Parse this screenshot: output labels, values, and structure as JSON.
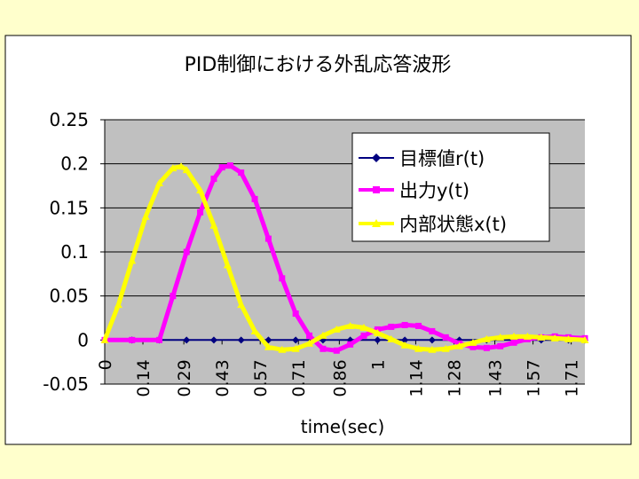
{
  "chart_data": {
    "type": "line",
    "title": "PID制御における外乱応答波形",
    "xlabel": "time(sec)",
    "ylabel": "",
    "ylim": [
      -0.05,
      0.25
    ],
    "yticks": [
      "0.25",
      "0.2",
      "0.15",
      "0.1",
      "0.05",
      "0",
      "-0.05"
    ],
    "ytick_values": [
      0.25,
      0.2,
      0.15,
      0.1,
      0.05,
      0,
      -0.05
    ],
    "xlim": [
      0,
      1.76
    ],
    "xticks": [
      "0",
      "0.14",
      "0.29",
      "0.43",
      "0.57",
      "0.71",
      "0.86",
      "1",
      "1.14",
      "1.28",
      "1.43",
      "1.57",
      "1.71"
    ],
    "xtick_values": [
      0,
      0.14,
      0.29,
      0.43,
      0.57,
      0.71,
      0.86,
      1.0,
      1.14,
      1.28,
      1.43,
      1.57,
      1.71
    ],
    "grid": true,
    "legend_position": "top-right",
    "colors": {
      "page_bg": "#ffffcc",
      "chart_bg": "#ffffff",
      "plot_bg": "#c0c0c0",
      "series_r": "#000080",
      "series_y": "#ff00ff",
      "series_x": "#ffff00"
    },
    "series": [
      {
        "name": "目標値r(t)",
        "marker": "diamond",
        "x": [
          0,
          0.1,
          0.2,
          0.3,
          0.4,
          0.5,
          0.6,
          0.7,
          0.8,
          0.9,
          1.0,
          1.1,
          1.2,
          1.3,
          1.4,
          1.5,
          1.6,
          1.7,
          1.76
        ],
        "y": [
          0,
          0,
          0,
          0,
          0,
          0,
          0,
          0,
          0,
          0,
          0,
          0,
          0,
          0,
          0,
          0,
          0,
          0,
          0
        ]
      },
      {
        "name": "出力y(t)",
        "marker": "square",
        "x": [
          0,
          0.1,
          0.2,
          0.25,
          0.3,
          0.35,
          0.4,
          0.43,
          0.46,
          0.5,
          0.55,
          0.6,
          0.65,
          0.7,
          0.75,
          0.8,
          0.85,
          0.9,
          0.95,
          1.0,
          1.05,
          1.1,
          1.15,
          1.2,
          1.25,
          1.3,
          1.35,
          1.4,
          1.45,
          1.5,
          1.55,
          1.6,
          1.65,
          1.7,
          1.76
        ],
        "y": [
          0,
          0,
          0,
          0.05,
          0.1,
          0.145,
          0.183,
          0.196,
          0.198,
          0.19,
          0.16,
          0.115,
          0.07,
          0.03,
          0.005,
          -0.01,
          -0.012,
          -0.005,
          0.005,
          0.012,
          0.015,
          0.017,
          0.016,
          0.01,
          0.003,
          -0.004,
          -0.008,
          -0.009,
          -0.007,
          -0.003,
          0.001,
          0.003,
          0.004,
          0.003,
          0.002
        ]
      },
      {
        "name": "内部状態x(t)",
        "marker": "triangle",
        "x": [
          0,
          0.05,
          0.1,
          0.15,
          0.2,
          0.25,
          0.28,
          0.3,
          0.35,
          0.4,
          0.45,
          0.5,
          0.55,
          0.6,
          0.65,
          0.7,
          0.75,
          0.8,
          0.85,
          0.9,
          0.95,
          1.0,
          1.05,
          1.1,
          1.15,
          1.2,
          1.25,
          1.3,
          1.35,
          1.4,
          1.45,
          1.5,
          1.55,
          1.6,
          1.65,
          1.7,
          1.76
        ],
        "y": [
          0,
          0.04,
          0.09,
          0.14,
          0.178,
          0.195,
          0.197,
          0.193,
          0.17,
          0.13,
          0.085,
          0.04,
          0.01,
          -0.008,
          -0.011,
          -0.01,
          -0.004,
          0.005,
          0.012,
          0.016,
          0.014,
          0.008,
          0.001,
          -0.006,
          -0.01,
          -0.011,
          -0.01,
          -0.007,
          -0.003,
          0.001,
          0.003,
          0.004,
          0.004,
          0.003,
          0.002,
          0.001,
          0
        ]
      }
    ]
  }
}
